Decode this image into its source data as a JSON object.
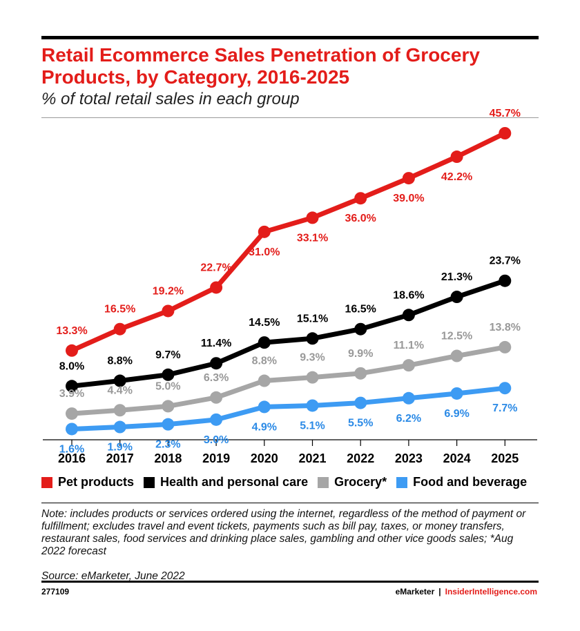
{
  "title": "Retail Ecommerce Sales Penetration of Grocery Products, by Category, 2016-2025",
  "subtitle": "% of total retail sales in each group",
  "note": "Note: includes products or services ordered using the internet, regardless of the method of payment or fulfillment; excludes travel and event tickets, payments such as bill pay, taxes, or money transfers, restaurant sales, food services and drinking place sales, gambling and other vice goods sales; *Aug 2022 forecast",
  "source": "Source: eMarketer, June 2022",
  "chart_id": "277109",
  "footer": {
    "brand": "eMarketer",
    "separator": "|",
    "site": "InsiderIntelligence.com"
  },
  "colors": {
    "accent": "#e31d1a",
    "pet": "#e31d1a",
    "health": "#000000",
    "grocery": "#a6a6a6",
    "food": "#3d9bf3"
  },
  "chart_data": {
    "type": "line",
    "x": [
      "2016",
      "2017",
      "2018",
      "2019",
      "2020",
      "2021",
      "2022",
      "2023",
      "2024",
      "2025"
    ],
    "ylim": [
      0,
      50
    ],
    "grid": false,
    "legend_position": "bottom",
    "series": [
      {
        "name": "Pet products",
        "color": "#e31d1a",
        "label_color": "#e31d1a",
        "values": [
          13.3,
          16.5,
          19.2,
          22.7,
          31.0,
          33.1,
          36.0,
          39.0,
          42.2,
          45.7
        ],
        "labels": [
          "13.3%",
          "16.5%",
          "19.2%",
          "22.7%",
          "31.0%",
          "33.1%",
          "36.0%",
          "39.0%",
          "42.2%",
          "45.7%"
        ]
      },
      {
        "name": "Health and personal care",
        "color": "#000000",
        "label_color": "#000000",
        "values": [
          8.0,
          8.8,
          9.7,
          11.4,
          14.5,
          15.1,
          16.5,
          18.6,
          21.3,
          23.7
        ],
        "labels": [
          "8.0%",
          "8.8%",
          "9.7%",
          "11.4%",
          "14.5%",
          "15.1%",
          "16.5%",
          "18.6%",
          "21.3%",
          "23.7%"
        ]
      },
      {
        "name": "Grocery*",
        "color": "#a6a6a6",
        "label_color": "#999999",
        "values": [
          3.9,
          4.4,
          5.0,
          6.3,
          8.8,
          9.3,
          9.9,
          11.1,
          12.5,
          13.8
        ],
        "labels": [
          "3.9%",
          "4.4%",
          "5.0%",
          "6.3%",
          "8.8%",
          "9.3%",
          "9.9%",
          "11.1%",
          "12.5%",
          "13.8%"
        ]
      },
      {
        "name": "Food and beverage",
        "color": "#3d9bf3",
        "label_color": "#2b8ae6",
        "values": [
          1.6,
          1.9,
          2.3,
          3.0,
          4.9,
          5.1,
          5.5,
          6.2,
          6.9,
          7.7
        ],
        "labels": [
          "1.6%",
          "1.9%",
          "2.3%",
          "3.0%",
          "4.9%",
          "5.1%",
          "5.5%",
          "6.2%",
          "6.9%",
          "7.7%"
        ]
      }
    ]
  }
}
